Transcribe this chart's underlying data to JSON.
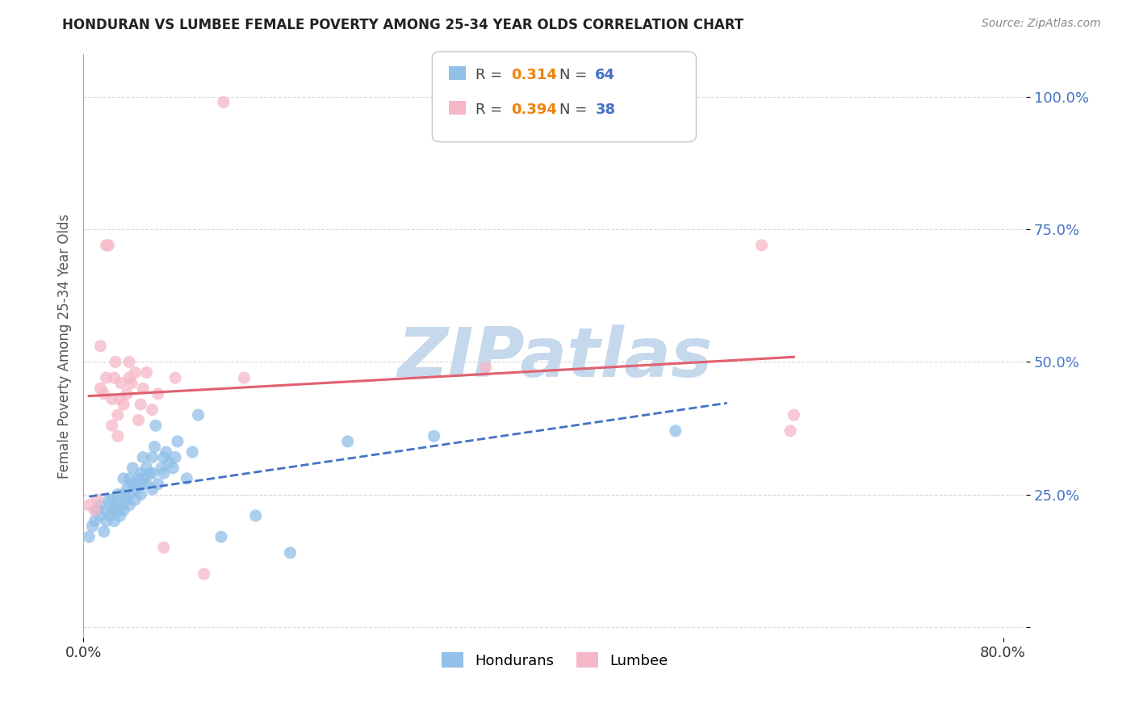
{
  "title": "HONDURAN VS LUMBEE FEMALE POVERTY AMONG 25-34 YEAR OLDS CORRELATION CHART",
  "source": "Source: ZipAtlas.com",
  "ylabel": "Female Poverty Among 25-34 Year Olds",
  "xlim": [
    0.0,
    0.82
  ],
  "ylim": [
    -0.02,
    1.08
  ],
  "x_ticks": [
    0.0,
    0.8
  ],
  "x_tick_labels": [
    "0.0%",
    "80.0%"
  ],
  "y_ticks": [
    0.0,
    0.25,
    0.5,
    0.75,
    1.0
  ],
  "y_tick_labels": [
    "",
    "25.0%",
    "50.0%",
    "75.0%",
    "100.0%"
  ],
  "honduran_color": "#92c0e8",
  "lumbee_color": "#f5b8c8",
  "honduran_R": 0.314,
  "honduran_N": 64,
  "lumbee_R": 0.394,
  "lumbee_N": 38,
  "legend_R_color": "#f0820a",
  "legend_N_color": "#4472c4",
  "watermark": "ZIPatlas",
  "watermark_color": "#c5d8ec",
  "honduran_scatter": [
    [
      0.005,
      0.17
    ],
    [
      0.008,
      0.19
    ],
    [
      0.01,
      0.2
    ],
    [
      0.012,
      0.22
    ],
    [
      0.014,
      0.21
    ],
    [
      0.015,
      0.23
    ],
    [
      0.018,
      0.18
    ],
    [
      0.02,
      0.2
    ],
    [
      0.02,
      0.22
    ],
    [
      0.022,
      0.24
    ],
    [
      0.023,
      0.21
    ],
    [
      0.025,
      0.22
    ],
    [
      0.025,
      0.24
    ],
    [
      0.027,
      0.2
    ],
    [
      0.028,
      0.23
    ],
    [
      0.03,
      0.22
    ],
    [
      0.03,
      0.25
    ],
    [
      0.032,
      0.21
    ],
    [
      0.033,
      0.23
    ],
    [
      0.035,
      0.22
    ],
    [
      0.035,
      0.25
    ],
    [
      0.035,
      0.28
    ],
    [
      0.037,
      0.24
    ],
    [
      0.038,
      0.26
    ],
    [
      0.04,
      0.23
    ],
    [
      0.04,
      0.25
    ],
    [
      0.04,
      0.28
    ],
    [
      0.042,
      0.27
    ],
    [
      0.043,
      0.3
    ],
    [
      0.045,
      0.24
    ],
    [
      0.045,
      0.27
    ],
    [
      0.047,
      0.26
    ],
    [
      0.048,
      0.28
    ],
    [
      0.05,
      0.25
    ],
    [
      0.05,
      0.27
    ],
    [
      0.05,
      0.29
    ],
    [
      0.052,
      0.32
    ],
    [
      0.053,
      0.28
    ],
    [
      0.055,
      0.27
    ],
    [
      0.055,
      0.3
    ],
    [
      0.058,
      0.29
    ],
    [
      0.06,
      0.26
    ],
    [
      0.06,
      0.29
    ],
    [
      0.06,
      0.32
    ],
    [
      0.062,
      0.34
    ],
    [
      0.063,
      0.38
    ],
    [
      0.065,
      0.27
    ],
    [
      0.068,
      0.3
    ],
    [
      0.07,
      0.29
    ],
    [
      0.07,
      0.32
    ],
    [
      0.072,
      0.33
    ],
    [
      0.075,
      0.31
    ],
    [
      0.078,
      0.3
    ],
    [
      0.08,
      0.32
    ],
    [
      0.082,
      0.35
    ],
    [
      0.09,
      0.28
    ],
    [
      0.095,
      0.33
    ],
    [
      0.1,
      0.4
    ],
    [
      0.12,
      0.17
    ],
    [
      0.15,
      0.21
    ],
    [
      0.18,
      0.14
    ],
    [
      0.23,
      0.35
    ],
    [
      0.305,
      0.36
    ],
    [
      0.515,
      0.37
    ]
  ],
  "lumbee_scatter": [
    [
      0.005,
      0.23
    ],
    [
      0.01,
      0.22
    ],
    [
      0.012,
      0.24
    ],
    [
      0.015,
      0.45
    ],
    [
      0.015,
      0.53
    ],
    [
      0.018,
      0.44
    ],
    [
      0.02,
      0.47
    ],
    [
      0.02,
      0.72
    ],
    [
      0.022,
      0.72
    ],
    [
      0.025,
      0.38
    ],
    [
      0.025,
      0.43
    ],
    [
      0.027,
      0.47
    ],
    [
      0.028,
      0.5
    ],
    [
      0.03,
      0.36
    ],
    [
      0.03,
      0.4
    ],
    [
      0.032,
      0.43
    ],
    [
      0.033,
      0.46
    ],
    [
      0.035,
      0.42
    ],
    [
      0.038,
      0.44
    ],
    [
      0.04,
      0.47
    ],
    [
      0.04,
      0.5
    ],
    [
      0.042,
      0.46
    ],
    [
      0.045,
      0.48
    ],
    [
      0.048,
      0.39
    ],
    [
      0.05,
      0.42
    ],
    [
      0.052,
      0.45
    ],
    [
      0.055,
      0.48
    ],
    [
      0.06,
      0.41
    ],
    [
      0.065,
      0.44
    ],
    [
      0.07,
      0.15
    ],
    [
      0.08,
      0.47
    ],
    [
      0.105,
      0.1
    ],
    [
      0.122,
      0.99
    ],
    [
      0.14,
      0.47
    ],
    [
      0.35,
      0.49
    ],
    [
      0.59,
      0.72
    ],
    [
      0.615,
      0.37
    ],
    [
      0.618,
      0.4
    ]
  ],
  "honduran_line_color": "#4472c4",
  "lumbee_line_color": "#e06070",
  "grid_color": "#d8d8d8"
}
